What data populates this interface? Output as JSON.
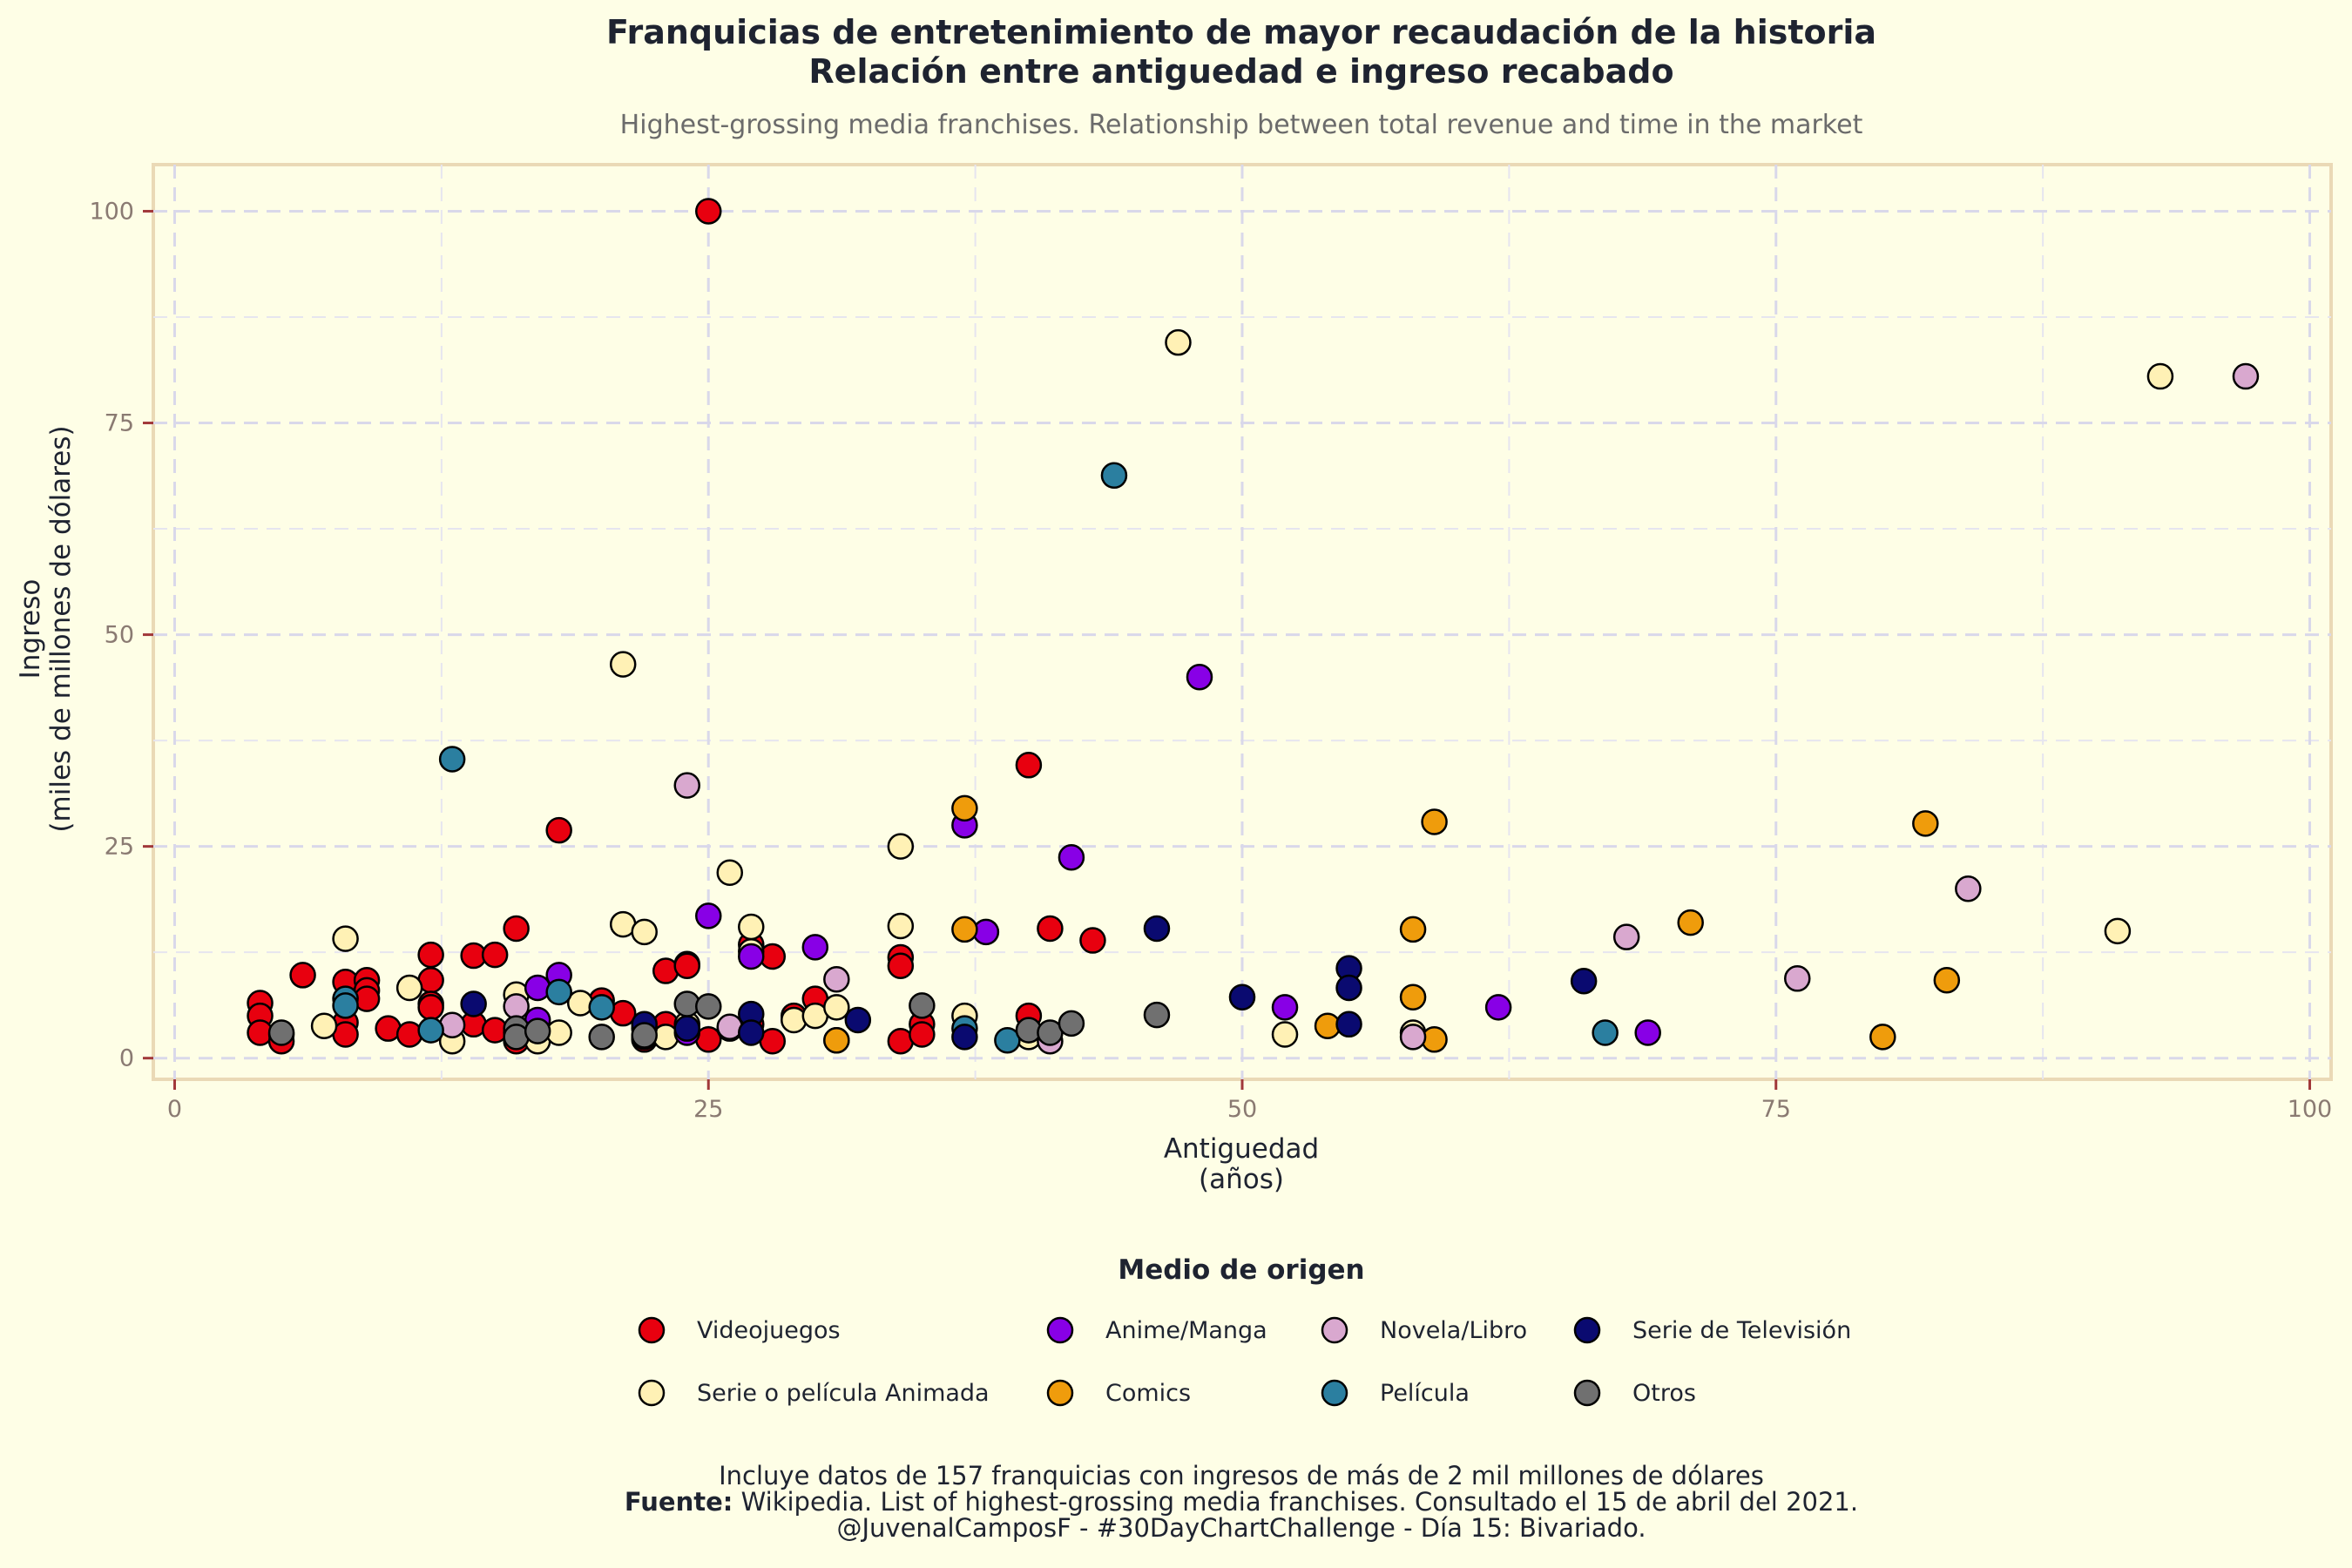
{
  "chart_data": {
    "type": "scatter",
    "title_line1": "Franquicias de entretenimiento de mayor recaudación de la historia",
    "title_line2": "Relación entre antiguedad e ingreso recabado",
    "subtitle": "Highest-grossing media franchises. Relationship between total revenue and time in the market",
    "xlabel_line1": "Antiguedad",
    "xlabel_line2": "(años)",
    "ylabel_line1": "Ingreso",
    "ylabel_line2": "(miles de millones de dólares)",
    "xlim": [
      -1,
      101
    ],
    "ylim": [
      -2.5,
      105.5
    ],
    "x_ticks": [
      0,
      25,
      50,
      75,
      100
    ],
    "y_ticks": [
      0,
      25,
      50,
      75,
      100
    ],
    "grid": true,
    "legend_position": "bottom",
    "legend_title": "Medio de origen",
    "series": [
      {
        "name": "Videojuegos",
        "color": "#e8000f",
        "x": [
          4,
          4,
          4,
          5,
          5,
          6,
          8,
          8,
          8,
          9,
          9,
          9,
          10,
          11,
          12,
          12,
          12,
          12,
          14,
          14,
          15,
          15,
          16,
          16,
          16,
          18,
          20,
          21,
          22,
          23,
          23,
          24,
          24,
          24,
          25,
          25,
          27,
          27,
          28,
          28,
          29,
          30,
          34,
          34,
          34,
          35,
          35,
          40,
          40,
          41,
          43
        ],
        "y": [
          6.5,
          5.0,
          3.0,
          2.8,
          2.0,
          9.8,
          9.0,
          4.2,
          2.8,
          9.2,
          8.0,
          7.0,
          3.5,
          2.8,
          12.2,
          9.2,
          6.4,
          6.0,
          12.1,
          4.0,
          12.2,
          3.3,
          15.3,
          3.0,
          2.0,
          26.9,
          6.8,
          5.3,
          2.2,
          10.3,
          4.0,
          11.1,
          10.9,
          3.8,
          100.0,
          2.2,
          13.4,
          4.0,
          12.0,
          2.0,
          5.0,
          7.0,
          11.9,
          10.9,
          2.0,
          4.0,
          2.8,
          34.6,
          5.0,
          15.3,
          13.9
        ]
      },
      {
        "name": "Serie o película Animada",
        "color": "#fff1b5",
        "x": [
          7,
          8,
          11,
          13,
          16,
          17,
          17,
          18,
          19,
          21,
          21,
          22,
          22,
          23,
          24,
          26,
          27,
          27,
          29,
          30,
          31,
          31,
          34,
          34,
          37,
          40,
          47,
          52,
          58,
          91,
          93
        ],
        "y": [
          3.8,
          14.1,
          8.3,
          2.0,
          7.5,
          2.5,
          2.0,
          3.0,
          6.5,
          46.5,
          15.8,
          14.9,
          2.5,
          2.5,
          4.0,
          21.9,
          15.5,
          12.6,
          4.5,
          5.0,
          2.1,
          6.0,
          25.0,
          15.6,
          5.0,
          2.5,
          84.5,
          2.8,
          3.0,
          15.0,
          80.5
        ]
      },
      {
        "name": "Anime/Manga",
        "color": "#8800e6",
        "x": [
          17,
          17,
          18,
          24,
          25,
          27,
          30,
          37,
          38,
          42,
          48,
          52,
          62,
          69
        ],
        "y": [
          8.3,
          4.5,
          9.8,
          3.0,
          16.8,
          12.0,
          13.1,
          27.5,
          14.9,
          23.7,
          45.0,
          6.0,
          6.0,
          3.0
        ]
      },
      {
        "name": "Comics",
        "color": "#ef9c0c",
        "x": [
          31,
          37,
          37,
          54,
          58,
          58,
          59,
          59,
          71,
          80,
          82,
          83
        ],
        "y": [
          2.1,
          29.5,
          15.2,
          3.8,
          15.2,
          7.2,
          27.9,
          2.2,
          16.0,
          2.5,
          27.7,
          9.2
        ]
      },
      {
        "name": "Novela/Libro",
        "color": "#d9a8cf",
        "x": [
          13,
          16,
          24,
          26,
          26,
          31,
          41,
          58,
          68,
          76,
          84,
          97
        ],
        "y": [
          3.9,
          6.1,
          32.2,
          3.5,
          3.7,
          9.3,
          2.0,
          2.5,
          14.3,
          9.4,
          20.0,
          80.5
        ]
      },
      {
        "name": "Película",
        "color": "#2b7fa0",
        "x": [
          8,
          8,
          12,
          13,
          18,
          20,
          22,
          37,
          39,
          44,
          67
        ],
        "y": [
          7.0,
          6.2,
          3.3,
          35.3,
          7.8,
          6.0,
          3.5,
          3.5,
          2.1,
          68.8,
          3.0
        ]
      },
      {
        "name": "Serie de Televisión",
        "color": "#0a0a70",
        "x": [
          14,
          22,
          24,
          27,
          27,
          32,
          37,
          46,
          50,
          55,
          55,
          55,
          66
        ],
        "y": [
          6.4,
          4.0,
          3.5,
          5.2,
          3.0,
          4.5,
          2.5,
          15.3,
          7.2,
          10.6,
          8.3,
          4.0,
          9.1
        ]
      },
      {
        "name": "Otros",
        "color": "#707070",
        "x": [
          5,
          16,
          16,
          17,
          20,
          22,
          24,
          25,
          35,
          40,
          41,
          42,
          46
        ],
        "y": [
          3.0,
          3.5,
          2.5,
          3.2,
          2.5,
          2.7,
          6.4,
          6.1,
          6.2,
          3.3,
          3.0,
          4.1,
          5.1
        ]
      }
    ]
  },
  "legend_rows": [
    [
      0,
      2,
      4,
      6
    ],
    [
      1,
      3,
      5,
      7
    ]
  ],
  "caption": {
    "line1": "Incluye datos de 157 franquicias con ingresos de más de 2 mil millones de dólares",
    "line2_bold": "Fuente:",
    "line2": " Wikipedia. List of highest-grossing media franchises. Consultado el 15 de abril del 2021.",
    "line3": "@JuvenalCamposF - #30DayChartChallenge - Día 15: Bivariado."
  }
}
